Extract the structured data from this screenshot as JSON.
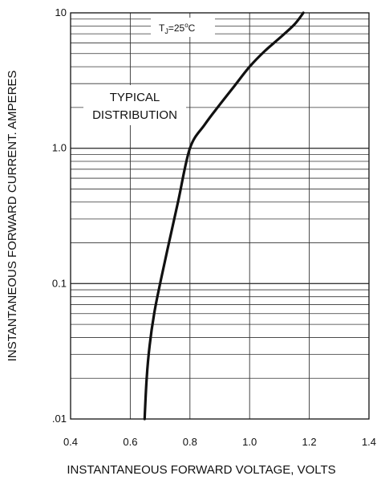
{
  "chart_data": {
    "type": "line",
    "xlabel": "INSTANTANEOUS FORWARD VOLTAGE, VOLTS",
    "ylabel": "INSTANTANEOUS FORWARD CURRENT. AMPERES",
    "xlim": [
      0.4,
      1.4
    ],
    "ylim": [
      0.01,
      10
    ],
    "yscale": "log",
    "grid": true,
    "x_ticks": [
      "0.4",
      "0.6",
      "0.8",
      "1.0",
      "1.2",
      "1.4"
    ],
    "y_ticks": [
      {
        "value": 0.01,
        "label": ".01"
      },
      {
        "value": 0.1,
        "label": "0.1"
      },
      {
        "value": 1,
        "label": "1.0"
      },
      {
        "value": 10,
        "label": "10"
      }
    ],
    "annotations": {
      "temperature": {
        "base": "T",
        "sub": "J",
        "rest": "=25",
        "deg": "o",
        "unit": "C"
      },
      "distribution": [
        "TYPICAL",
        "DISTRIBUTION"
      ]
    },
    "series": [
      {
        "x": [
          0.648,
          0.655,
          0.665,
          0.68,
          0.7,
          0.725,
          0.76,
          0.8,
          0.85,
          0.9,
          0.95,
          1.0,
          1.05,
          1.1,
          1.15,
          1.18
        ],
        "y": [
          0.01,
          0.02,
          0.035,
          0.06,
          0.1,
          0.18,
          0.4,
          1.0,
          1.5,
          2.1,
          2.9,
          4.0,
          5.2,
          6.5,
          8.2,
          10.0
        ]
      }
    ],
    "color": "#111111"
  }
}
